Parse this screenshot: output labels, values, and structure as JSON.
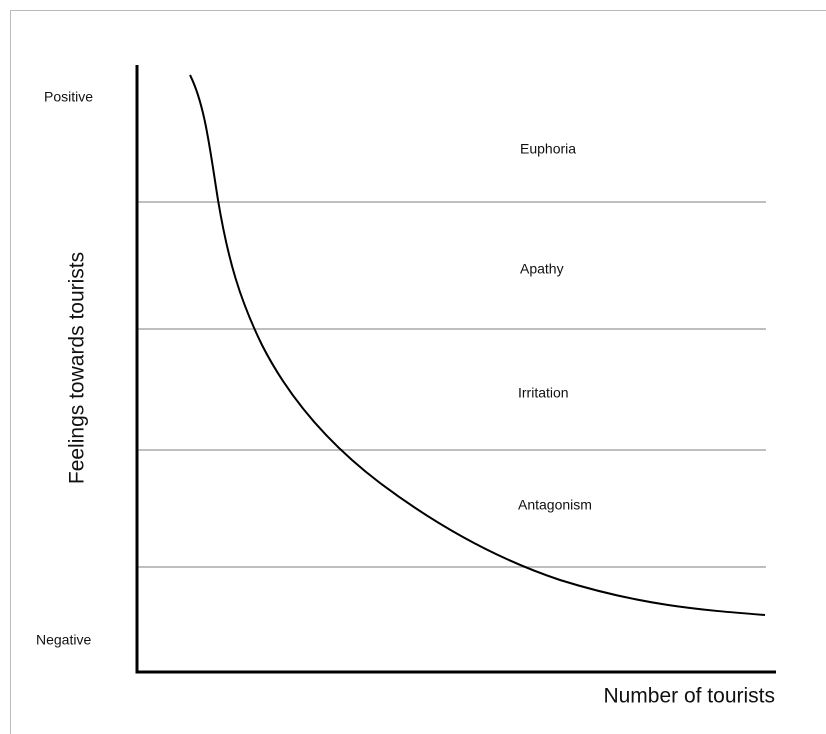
{
  "axes": {
    "y_label": "Feelings towards tourists",
    "x_label": "Number of tourists",
    "y_top": "Positive",
    "y_bottom": "Negative"
  },
  "zones": [
    "Euphoria",
    "Apathy",
    "Irritation",
    "Antagonism"
  ]
}
